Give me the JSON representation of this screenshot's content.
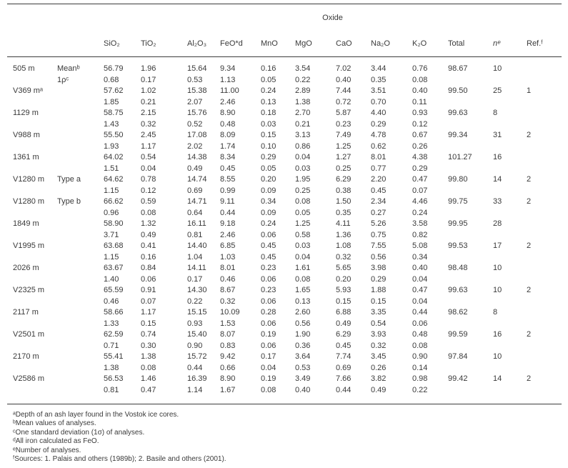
{
  "page": {
    "background": "#ffffff",
    "text_color": "#3a3a3a",
    "rule_color": "#3c3c3c"
  },
  "table": {
    "group_header": "Oxide",
    "columns": [
      {
        "label": "",
        "italic": false
      },
      {
        "label": "",
        "italic": false
      },
      {
        "label": "SiO₂",
        "italic": false
      },
      {
        "label": "TiO₂",
        "italic": false
      },
      {
        "label": "Al₂O₃",
        "italic": false
      },
      {
        "label": "FeO*d",
        "italic": false
      },
      {
        "label": "MnO",
        "italic": false
      },
      {
        "label": "MgO",
        "italic": false
      },
      {
        "label": "CaO",
        "italic": false
      },
      {
        "label": "Na₂O",
        "italic": false
      },
      {
        "label": "K₂O",
        "italic": false
      },
      {
        "label": "Total",
        "italic": false
      },
      {
        "label": "nᵉ",
        "italic": true
      },
      {
        "label": "Ref.ᶠ",
        "italic": false
      }
    ],
    "rows": [
      {
        "sample": "505 m",
        "row1_label": "Meanᵇ",
        "row2_label": "1ρᶜ",
        "mean": [
          "56.79",
          "1.96",
          "15.64",
          "9.34",
          "0.16",
          "3.54",
          "7.02",
          "3.44",
          "0.76"
        ],
        "total": "98.67",
        "n": "10",
        "ref": "",
        "sd": [
          "0.68",
          "0.17",
          "0.53",
          "1.13",
          "0.05",
          "0.22",
          "0.40",
          "0.35",
          "0.08"
        ]
      },
      {
        "sample": "V369 mᵃ",
        "row1_label": "",
        "row2_label": "",
        "mean": [
          "57.62",
          "1.02",
          "15.38",
          "11.00",
          "0.24",
          "2.89",
          "7.44",
          "3.51",
          "0.40"
        ],
        "total": "99.50",
        "n": "25",
        "ref": "1",
        "sd": [
          "1.85",
          "0.21",
          "2.07",
          "2.46",
          "0.13",
          "1.38",
          "0.72",
          "0.70",
          "0.11"
        ]
      },
      {
        "sample": "1129 m",
        "row1_label": "",
        "row2_label": "",
        "mean": [
          "58.75",
          "2.15",
          "15.76",
          "8.90",
          "0.18",
          "2.70",
          "5.87",
          "4.40",
          "0.93"
        ],
        "total": "99.63",
        "n": "8",
        "ref": "",
        "sd": [
          "1.43",
          "0.32",
          "0.52",
          "0.48",
          "0.03",
          "0.21",
          "0.23",
          "0.29",
          "0.12"
        ]
      },
      {
        "sample": "V988 m",
        "row1_label": "",
        "row2_label": "",
        "mean": [
          "55.50",
          "2.45",
          "17.08",
          "8.09",
          "0.15",
          "3.13",
          "7.49",
          "4.78",
          "0.67"
        ],
        "total": "99.34",
        "n": "31",
        "ref": "2",
        "sd": [
          "1.93",
          "1.17",
          "2.02",
          "1.74",
          "0.10",
          "0.86",
          "1.25",
          "0.62",
          "0.26"
        ]
      },
      {
        "sample": "1361 m",
        "row1_label": "",
        "row2_label": "",
        "mean": [
          "64.02",
          "0.54",
          "14.38",
          "8.34",
          "0.29",
          "0.04",
          "1.27",
          "8.01",
          "4.38"
        ],
        "total": "101.27",
        "n": "16",
        "ref": "",
        "sd": [
          "1.51",
          "0.04",
          "0.49",
          "0.45",
          "0.05",
          "0.03",
          "0.25",
          "0.77",
          "0.29"
        ]
      },
      {
        "sample": "V1280 m",
        "row1_label": "Type a",
        "row2_label": "",
        "mean": [
          "64.62",
          "0.78",
          "14.74",
          "8.55",
          "0.20",
          "1.95",
          "6.29",
          "2.20",
          "0.47"
        ],
        "total": "99.80",
        "n": "14",
        "ref": "2",
        "sd": [
          "1.15",
          "0.12",
          "0.69",
          "0.99",
          "0.09",
          "0.25",
          "0.38",
          "0.45",
          "0.07"
        ]
      },
      {
        "sample": "V1280 m",
        "row1_label": "Type b",
        "row2_label": "",
        "mean": [
          "66.62",
          "0.59",
          "14.71",
          "9.11",
          "0.34",
          "0.08",
          "1.50",
          "2.34",
          "4.46"
        ],
        "total": "99.75",
        "n": "33",
        "ref": "2",
        "sd": [
          "0.96",
          "0.08",
          "0.64",
          "0.44",
          "0.09",
          "0.05",
          "0.35",
          "0.27",
          "0.24"
        ]
      },
      {
        "sample": "1849 m",
        "row1_label": "",
        "row2_label": "",
        "mean": [
          "58.90",
          "1.32",
          "16.11",
          "9.18",
          "0.24",
          "1.25",
          "4.11",
          "5.26",
          "3.58"
        ],
        "total": "99.95",
        "n": "28",
        "ref": "",
        "sd": [
          "3.71",
          "0.49",
          "0.81",
          "2.46",
          "0.06",
          "0.58",
          "1.36",
          "0.75",
          "0.82"
        ]
      },
      {
        "sample": "V1995 m",
        "row1_label": "",
        "row2_label": "",
        "mean": [
          "63.68",
          "0.41",
          "14.40",
          "6.85",
          "0.45",
          "0.03",
          "1.08",
          "7.55",
          "5.08"
        ],
        "total": "99.53",
        "n": "17",
        "ref": "2",
        "sd": [
          "1.15",
          "0.16",
          "1.04",
          "1.03",
          "0.45",
          "0.04",
          "0.32",
          "0.56",
          "0.34"
        ]
      },
      {
        "sample": "2026 m",
        "row1_label": "",
        "row2_label": "",
        "mean": [
          "63.67",
          "0.84",
          "14.11",
          "8.01",
          "0.23",
          "1.61",
          "5.65",
          "3.98",
          "0.40"
        ],
        "total": "98.48",
        "n": "10",
        "ref": "",
        "sd": [
          "1.40",
          "0.06",
          "0.17",
          "0.46",
          "0.06",
          "0.08",
          "0.20",
          "0.29",
          "0.04"
        ]
      },
      {
        "sample": "V2325 m",
        "row1_label": "",
        "row2_label": "",
        "mean": [
          "65.59",
          "0.91",
          "14.30",
          "8.67",
          "0.23",
          "1.65",
          "5.93",
          "1.88",
          "0.47"
        ],
        "total": "99.63",
        "n": "10",
        "ref": "2",
        "sd": [
          "0.46",
          "0.07",
          "0.22",
          "0.32",
          "0.06",
          "0.13",
          "0.15",
          "0.15",
          "0.04"
        ]
      },
      {
        "sample": "2117 m",
        "row1_label": "",
        "row2_label": "",
        "mean": [
          "58.66",
          "1.17",
          "15.15",
          "10.09",
          "0.28",
          "2.60",
          "6.88",
          "3.35",
          "0.44"
        ],
        "total": "98.62",
        "n": "8",
        "ref": "",
        "sd": [
          "1.33",
          "0.15",
          "0.93",
          "1.53",
          "0.06",
          "0.56",
          "0.49",
          "0.54",
          "0.06"
        ]
      },
      {
        "sample": "V2501 m",
        "row1_label": "",
        "row2_label": "",
        "mean": [
          "62.59",
          "0.74",
          "15.40",
          "8.07",
          "0.19",
          "1.90",
          "6.29",
          "3.93",
          "0.48"
        ],
        "total": "99.59",
        "n": "16",
        "ref": "2",
        "sd": [
          "0.71",
          "0.30",
          "0.90",
          "0.83",
          "0.06",
          "0.36",
          "0.45",
          "0.32",
          "0.08"
        ]
      },
      {
        "sample": "2170 m",
        "row1_label": "",
        "row2_label": "",
        "mean": [
          "55.41",
          "1.38",
          "15.72",
          "9.42",
          "0.17",
          "3.64",
          "7.74",
          "3.45",
          "0.90"
        ],
        "total": "97.84",
        "n": "10",
        "ref": "",
        "sd": [
          "1.38",
          "0.08",
          "0.44",
          "0.66",
          "0.04",
          "0.53",
          "0.69",
          "0.26",
          "0.14"
        ]
      },
      {
        "sample": "V2586 m",
        "row1_label": "",
        "row2_label": "",
        "mean": [
          "56.53",
          "1.46",
          "16.39",
          "8.90",
          "0.19",
          "3.49",
          "7.66",
          "3.82",
          "0.98"
        ],
        "total": "99.42",
        "n": "14",
        "ref": "2",
        "sd": [
          "0.81",
          "0.47",
          "1.14",
          "1.67",
          "0.08",
          "0.40",
          "0.44",
          "0.49",
          "0.22"
        ]
      }
    ]
  },
  "footnotes": {
    "lines": [
      "ᵃDepth of an ash layer found in the Vostok ice cores.",
      "ᵇMean values of analyses.",
      "ᶜOne standard deviation (1σ) of analyses.",
      "ᵈAll iron calculated as FeO.",
      "ᵉNumber of analyses.",
      "ᶠSources: 1. Palais and others (1989b); 2. Basile and others (2001)."
    ]
  }
}
